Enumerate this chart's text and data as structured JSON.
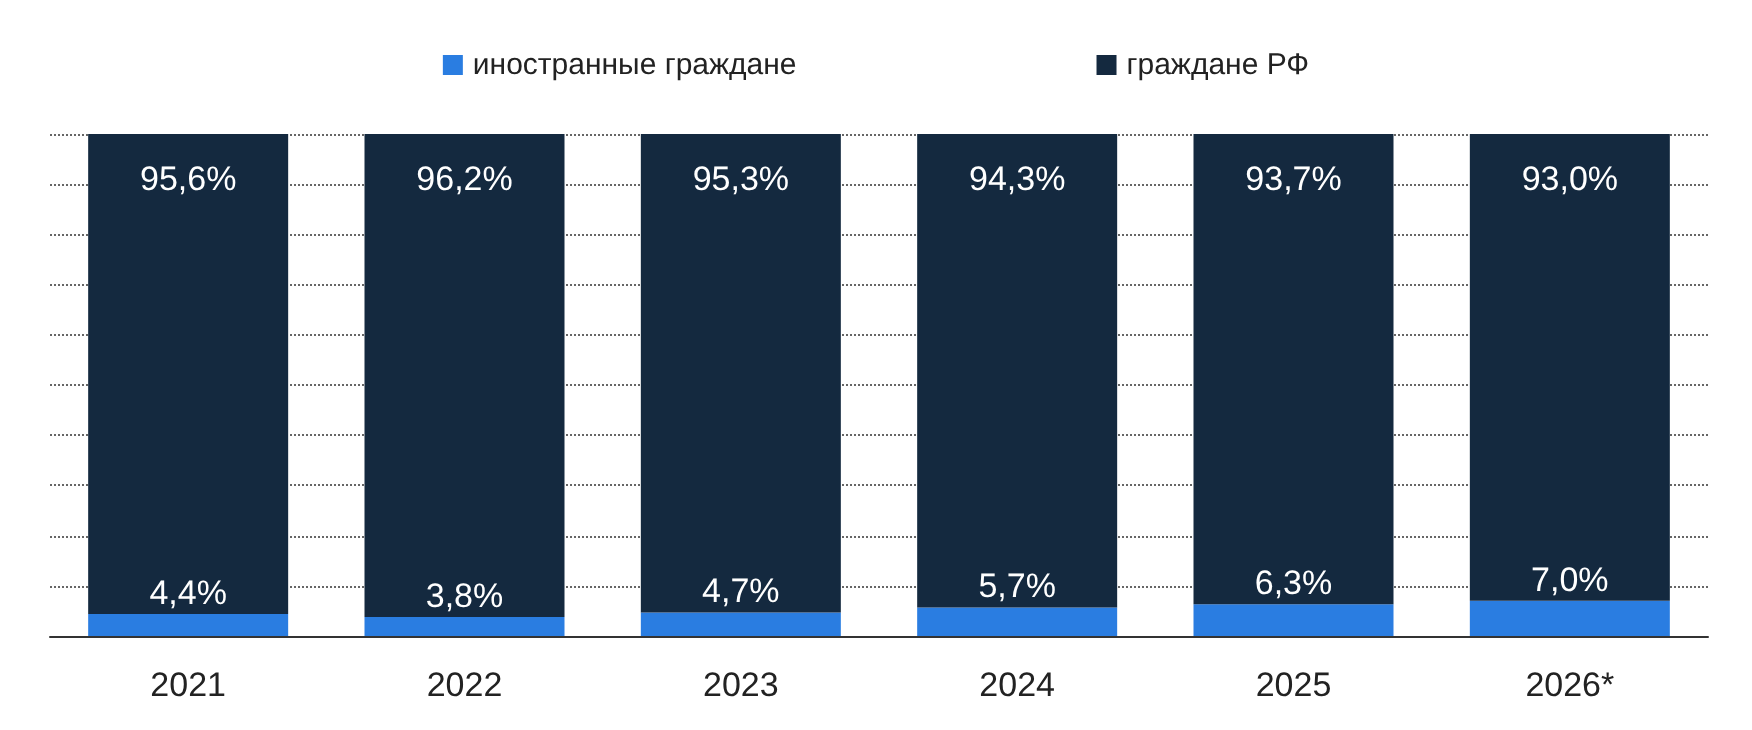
{
  "chart_data": {
    "type": "bar",
    "stacked": true,
    "categories": [
      "2021",
      "2022",
      "2023",
      "2024",
      "2025",
      "2026*"
    ],
    "series": [
      {
        "name": "иностранные граждане",
        "color": "#2a7de1",
        "values": [
          4.4,
          3.8,
          4.7,
          5.7,
          6.3,
          7.0
        ],
        "value_labels": [
          "4,4%",
          "3,8%",
          "4,7%",
          "5,7%",
          "6,3%",
          "7,0%"
        ]
      },
      {
        "name": "граждане РФ",
        "color": "#14293f",
        "values": [
          95.6,
          96.2,
          95.3,
          94.3,
          93.7,
          93.0
        ],
        "value_labels": [
          "95,6%",
          "96,2%",
          "95,3%",
          "94,3%",
          "93,7%",
          "93,0%"
        ]
      }
    ],
    "ylim": [
      0,
      100
    ],
    "yticks": [
      0,
      10,
      20,
      30,
      40,
      50,
      60,
      70,
      80,
      90,
      100
    ],
    "tick_labels": "x",
    "grid": "y",
    "legend": "top"
  }
}
